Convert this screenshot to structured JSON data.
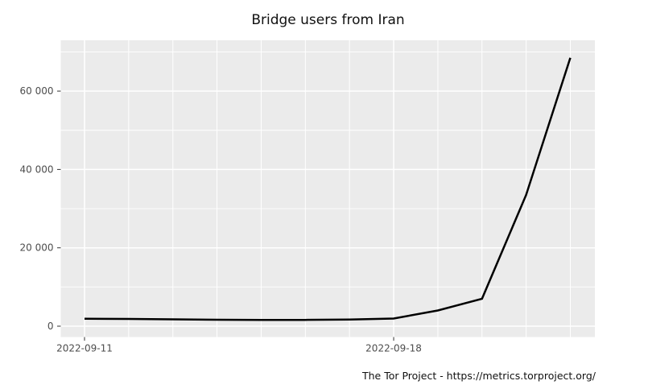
{
  "title": "Bridge users from Iran",
  "footer": "The Tor Project - https://metrics.torproject.org/",
  "colors": {
    "page_bg": "#ffffff",
    "panel_bg": "#ebebeb",
    "gridline": "#ffffff",
    "line": "#000000",
    "axis_text": "#4d4d4d",
    "tick_mark": "#333333",
    "title_text": "#111111"
  },
  "chart_data": {
    "type": "line",
    "title": "Bridge users from Iran",
    "xlabel": "",
    "ylabel": "",
    "x": [
      "2022-09-11",
      "2022-09-12",
      "2022-09-13",
      "2022-09-14",
      "2022-09-15",
      "2022-09-16",
      "2022-09-17",
      "2022-09-18",
      "2022-09-19",
      "2022-09-20",
      "2022-09-21",
      "2022-09-22"
    ],
    "values": [
      1900,
      1850,
      1750,
      1650,
      1600,
      1600,
      1700,
      1950,
      4000,
      7000,
      33500,
      68500
    ],
    "series_name": "Bridge users",
    "ylim": [
      -3000,
      73000
    ],
    "y_major_ticks": [
      0,
      20000,
      40000,
      60000
    ],
    "y_tick_labels": [
      "0",
      "20 000",
      "40 000",
      "60 000"
    ],
    "y_minor_ticks": [
      10000,
      30000,
      50000,
      70000
    ],
    "x_labeled_breaks": [
      "2022-09-11",
      "2022-09-18"
    ],
    "x_gridline_interval": "daily",
    "grid": true,
    "legend_position": "none"
  }
}
